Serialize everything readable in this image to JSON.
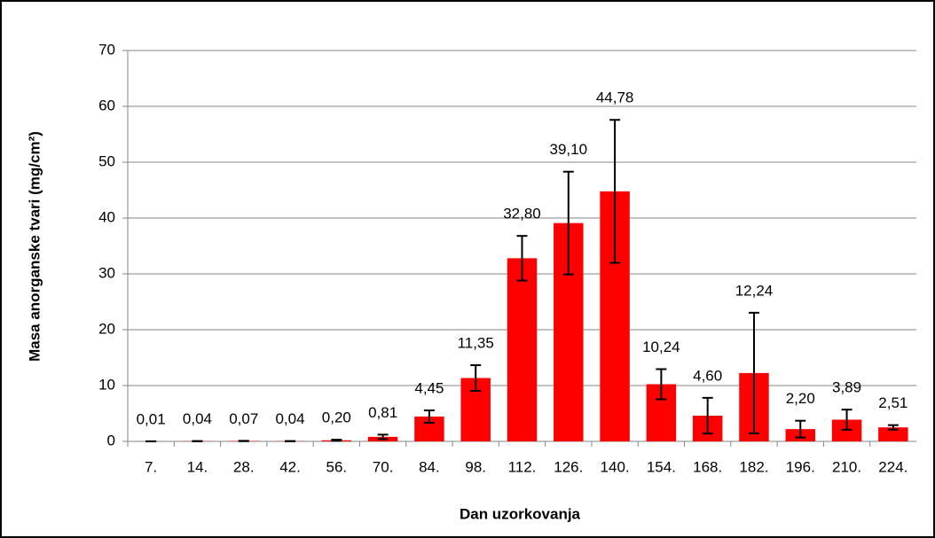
{
  "chart_data": {
    "type": "bar",
    "xlabel": "Dan uzorkovanja",
    "ylabel": "Masa anorganske tvari (mg/cm²)",
    "categories": [
      "7.",
      "14.",
      "28.",
      "42.",
      "56.",
      "70.",
      "84.",
      "98.",
      "112.",
      "126.",
      "140.",
      "154.",
      "168.",
      "182.",
      "196.",
      "210.",
      "224."
    ],
    "values": [
      0.01,
      0.04,
      0.07,
      0.04,
      0.2,
      0.81,
      4.45,
      11.35,
      32.8,
      39.1,
      44.78,
      10.24,
      4.6,
      12.24,
      2.2,
      3.89,
      2.51
    ],
    "value_labels": [
      "0,01",
      "0,04",
      "0,07",
      "0,04",
      "0,20",
      "0,81",
      "4,45",
      "11,35",
      "32,80",
      "39,10",
      "44,78",
      "10,24",
      "4,60",
      "12,24",
      "2,20",
      "3,89",
      "2,51"
    ],
    "errors": [
      0.01,
      0.02,
      0.03,
      0.02,
      0.1,
      0.4,
      1.1,
      2.3,
      4.0,
      9.2,
      12.8,
      2.7,
      3.2,
      10.8,
      1.5,
      1.8,
      0.4
    ],
    "color": "#ff0000",
    "ylim": [
      0,
      70
    ],
    "yticks": [
      0,
      10,
      20,
      30,
      40,
      50,
      60,
      70
    ],
    "grid": true
  }
}
